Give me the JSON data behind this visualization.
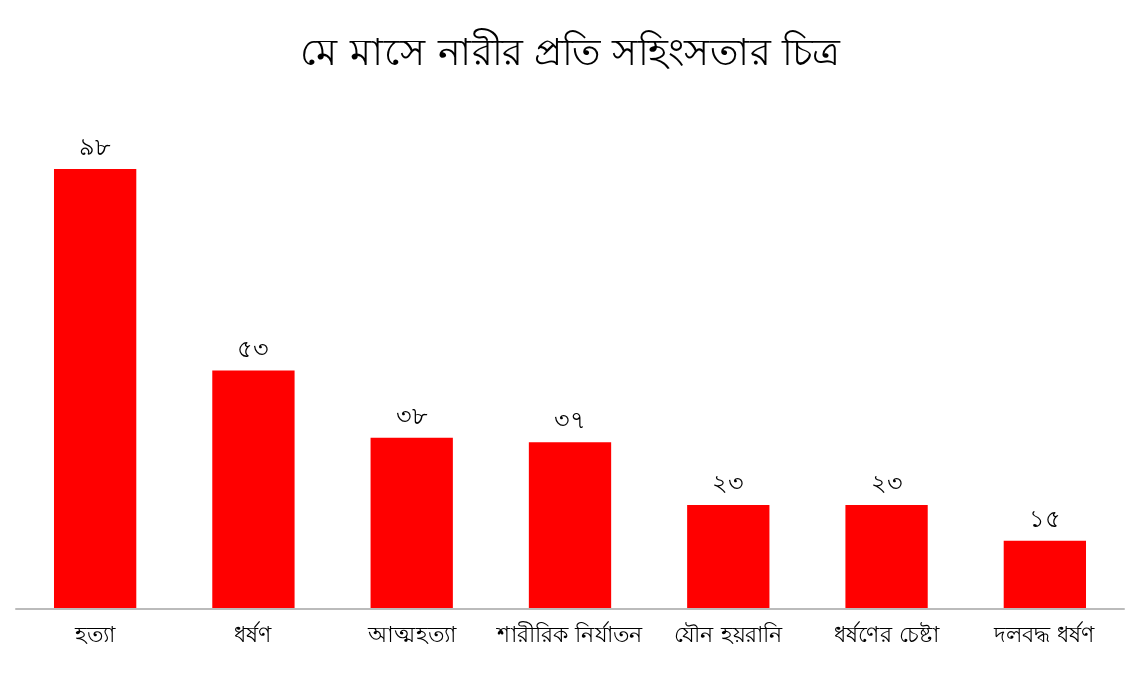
{
  "chart_data": {
    "type": "bar",
    "title": "মে মাসে নারীর প্রতি সহিংসতার চিত্র",
    "categories": [
      "হত্যা",
      "ধর্ষণ",
      "আত্মহত্যা",
      "শারীরিক নির্যাতন",
      "যৌন হয়রানি",
      "ধর্ষণের চেষ্টা",
      "দলবদ্ধ ধর্ষণ"
    ],
    "values": [
      98,
      53,
      38,
      37,
      23,
      23,
      15
    ],
    "value_labels": [
      "৯৮",
      "৫৩",
      "৩৮",
      "৩৭",
      "২৩",
      "২৩",
      "১৫"
    ],
    "color": "#ff0000",
    "grid": false
  }
}
